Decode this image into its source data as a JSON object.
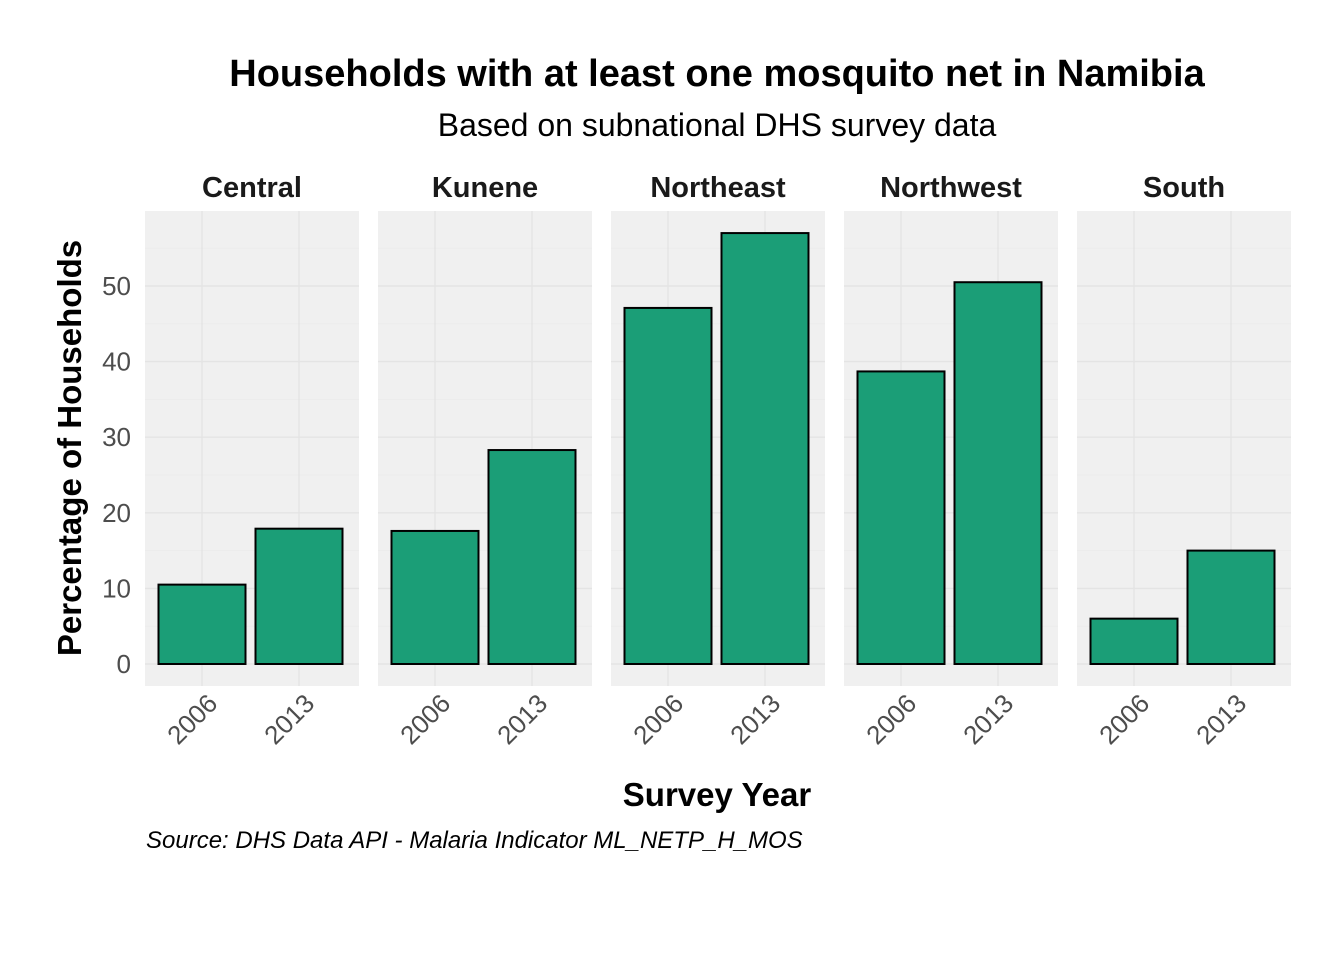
{
  "chart_data": {
    "type": "bar",
    "title": "Households with at least one mosquito net in Namibia",
    "subtitle": "Based on subnational DHS survey data",
    "xlabel": "Survey Year",
    "ylabel": "Percentage of Households",
    "caption": "Source: DHS Data API - Malaria Indicator ML_NETP_H_MOS",
    "categories": [
      "2006",
      "2013"
    ],
    "ylim": [
      0,
      59
    ],
    "yticks": [
      0,
      10,
      20,
      30,
      40,
      50
    ],
    "grid": true,
    "bar_color": "#1b9e77",
    "facets": [
      {
        "name": "Central",
        "values": [
          10.5,
          17.9
        ]
      },
      {
        "name": "Kunene",
        "values": [
          17.6,
          28.3
        ]
      },
      {
        "name": "Northeast",
        "values": [
          47.1,
          57.0
        ]
      },
      {
        "name": "Northwest",
        "values": [
          38.7,
          50.5
        ]
      },
      {
        "name": "South",
        "values": [
          6.0,
          15.0
        ]
      }
    ]
  }
}
